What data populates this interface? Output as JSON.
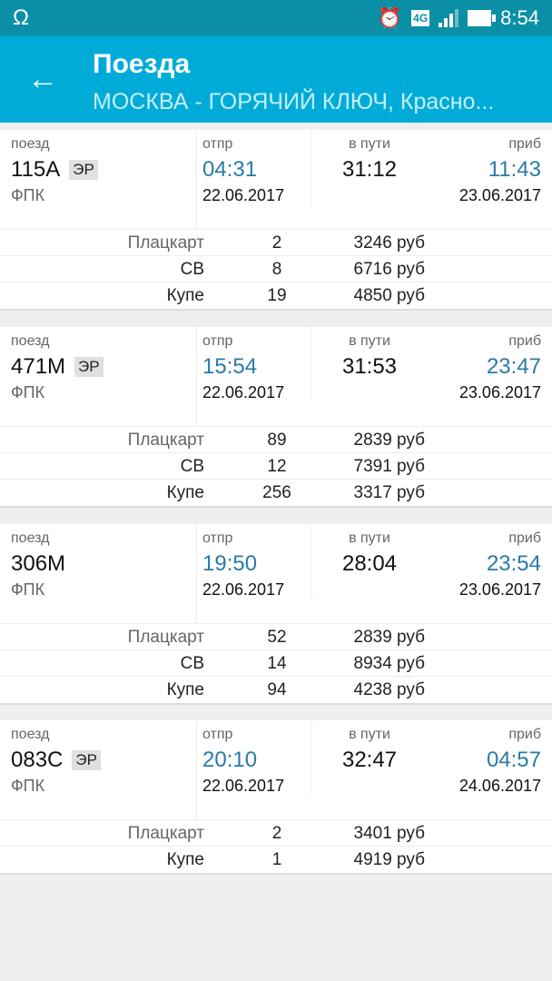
{
  "status_bar": {
    "time": "8:54",
    "network": "4G",
    "icons": [
      "headset-icon",
      "alarm-icon",
      "signal-icon",
      "battery-icon"
    ]
  },
  "toolbar": {
    "title": "Поезда",
    "subtitle": "МОСКВА - ГОРЯЧИЙ КЛЮЧ, Красно..."
  },
  "labels": {
    "train": "поезд",
    "depart": "отпр",
    "duration": "в пути",
    "arrive": "приб"
  },
  "colors": {
    "status_bar": "#0a8fa6",
    "toolbar": "#00acd7",
    "time_accent": "#2a7aa8"
  },
  "trains": [
    {
      "number": "115А",
      "badge": "ЭР",
      "carrier": "ФПК",
      "dep_time": "04:31",
      "dep_date": "22.06.2017",
      "duration": "31:12",
      "arr_time": "11:43",
      "arr_date": "23.06.2017",
      "seats": [
        {
          "class": "Плацкарт",
          "count": "2",
          "price": "3246 руб"
        },
        {
          "class": "СВ",
          "count": "8",
          "price": "6716 руб"
        },
        {
          "class": "Купе",
          "count": "19",
          "price": "4850 руб"
        }
      ]
    },
    {
      "number": "471М",
      "badge": "ЭР",
      "carrier": "ФПК",
      "dep_time": "15:54",
      "dep_date": "22.06.2017",
      "duration": "31:53",
      "arr_time": "23:47",
      "arr_date": "23.06.2017",
      "seats": [
        {
          "class": "Плацкарт",
          "count": "89",
          "price": "2839 руб"
        },
        {
          "class": "СВ",
          "count": "12",
          "price": "7391 руб"
        },
        {
          "class": "Купе",
          "count": "256",
          "price": "3317 руб"
        }
      ]
    },
    {
      "number": "306М",
      "badge": "",
      "carrier": "ФПК",
      "dep_time": "19:50",
      "dep_date": "22.06.2017",
      "duration": "28:04",
      "arr_time": "23:54",
      "arr_date": "23.06.2017",
      "seats": [
        {
          "class": "Плацкарт",
          "count": "52",
          "price": "2839 руб"
        },
        {
          "class": "СВ",
          "count": "14",
          "price": "8934 руб"
        },
        {
          "class": "Купе",
          "count": "94",
          "price": "4238 руб"
        }
      ]
    },
    {
      "number": "083С",
      "badge": "ЭР",
      "carrier": "ФПК",
      "dep_time": "20:10",
      "dep_date": "22.06.2017",
      "duration": "32:47",
      "arr_time": "04:57",
      "arr_date": "24.06.2017",
      "seats": [
        {
          "class": "Плацкарт",
          "count": "2",
          "price": "3401 руб"
        },
        {
          "class": "Купе",
          "count": "1",
          "price": "4919 руб"
        }
      ]
    }
  ]
}
